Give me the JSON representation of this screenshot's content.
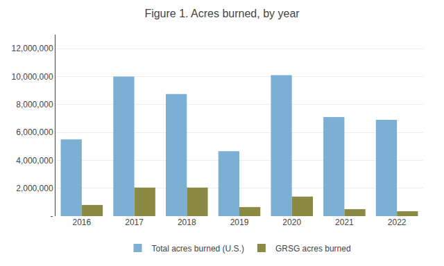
{
  "chart_data": {
    "type": "bar",
    "title": "Figure 1. Acres burned, by year",
    "categories": [
      "2016",
      "2017",
      "2018",
      "2019",
      "2020",
      "2021",
      "2022"
    ],
    "series": [
      {
        "name": "Total acres burned (U.S.)",
        "color": "#7BAFD4",
        "values": [
          5500000,
          10000000,
          8750000,
          4650000,
          10100000,
          7100000,
          6900000
        ]
      },
      {
        "name": "GRSG acres burned",
        "color": "#8A8A45",
        "values": [
          800000,
          2050000,
          2050000,
          650000,
          1400000,
          500000,
          350000
        ]
      }
    ],
    "ylim": [
      0,
      13000000
    ],
    "yticks": [
      {
        "value": 0,
        "label": "-"
      },
      {
        "value": 2000000,
        "label": "2,000,000"
      },
      {
        "value": 4000000,
        "label": "4,000,000"
      },
      {
        "value": 6000000,
        "label": "6,000,000"
      },
      {
        "value": 8000000,
        "label": "8,000,000"
      },
      {
        "value": 10000000,
        "label": "10,000,000"
      },
      {
        "value": 12000000,
        "label": "12,000,000"
      }
    ],
    "grid": true,
    "legend": "bottom"
  }
}
